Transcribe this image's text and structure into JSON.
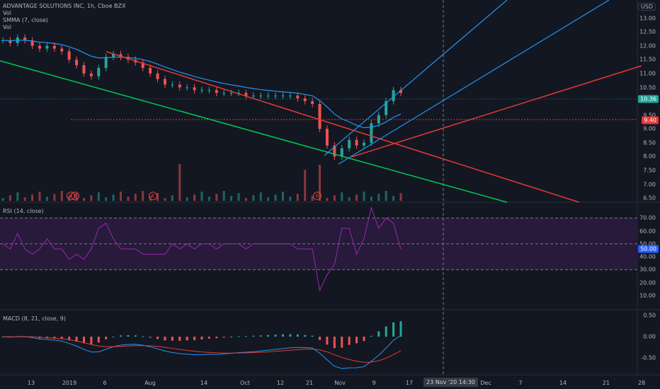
{
  "legend": {
    "title": "ADVANTAGE SOLUTIONS INC, 1h, Cboe BZX",
    "vol_label": "Vol",
    "smma_label": "SMMA (7, close)",
    "vol_label2": "Vol",
    "rsi_label": "RSI (14, close)",
    "macd_label": "MACD (8, 21, close, 9)"
  },
  "currency": "USD",
  "price_axis": [
    "13.00",
    "12.50",
    "12.00",
    "11.50",
    "11.00",
    "10.50",
    "10.00",
    "9.50",
    "9.00",
    "8.50",
    "8.00",
    "7.50",
    "7.00",
    "6.50"
  ],
  "price_tags": {
    "last": "10.36",
    "level": "9.40"
  },
  "rsi_axis": [
    "70.00",
    "60.00",
    "50.00",
    "40.00",
    "30.00",
    "20.00",
    "10.00"
  ],
  "rsi_tag": "50.00",
  "macd_axis": [
    "0.50",
    "0.00",
    "-0.50"
  ],
  "x_axis": [
    "13",
    "2019",
    "6",
    "Aug",
    "14",
    "Oct",
    "12",
    "21",
    "Nov",
    "9",
    "17",
    "Dec",
    "7",
    "14",
    "21",
    "28"
  ],
  "crosshair": {
    "date": "23 Nov '20",
    "time": "14:30"
  },
  "earnings_marker": "E",
  "colors": {
    "bg": "#131722",
    "up": "#26a69a",
    "down": "#ef5350",
    "blue": "#2196f3",
    "red": "#e53935",
    "green": "#00c853",
    "rsi": "#9c27b0"
  },
  "chart_data": {
    "type": "line",
    "title": "ADVANTAGE SOLUTIONS INC, 1h, Cboe BZX",
    "ylim": [
      6.4,
      13.4
    ],
    "price_series": [
      12.2,
      12.1,
      12.3,
      12.2,
      12.0,
      11.9,
      12.0,
      11.9,
      11.8,
      11.5,
      11.3,
      11.0,
      10.9,
      11.2,
      11.6,
      11.7,
      11.6,
      11.5,
      11.4,
      11.2,
      11.0,
      10.8,
      10.6,
      10.6,
      10.5,
      10.5,
      10.4,
      10.4,
      10.4,
      10.3,
      10.3,
      10.3,
      10.3,
      10.2,
      10.2,
      10.2,
      10.2,
      10.2,
      10.2,
      10.2,
      10.1,
      10.0,
      9.9,
      9.0,
      8.4,
      8.0,
      8.3,
      8.6,
      8.4,
      8.5,
      9.2,
      9.5,
      10.0,
      10.4,
      10.3
    ],
    "rsi_levels": [
      70,
      50,
      30
    ],
    "macd_ylim": [
      -0.5,
      0.5
    ]
  }
}
